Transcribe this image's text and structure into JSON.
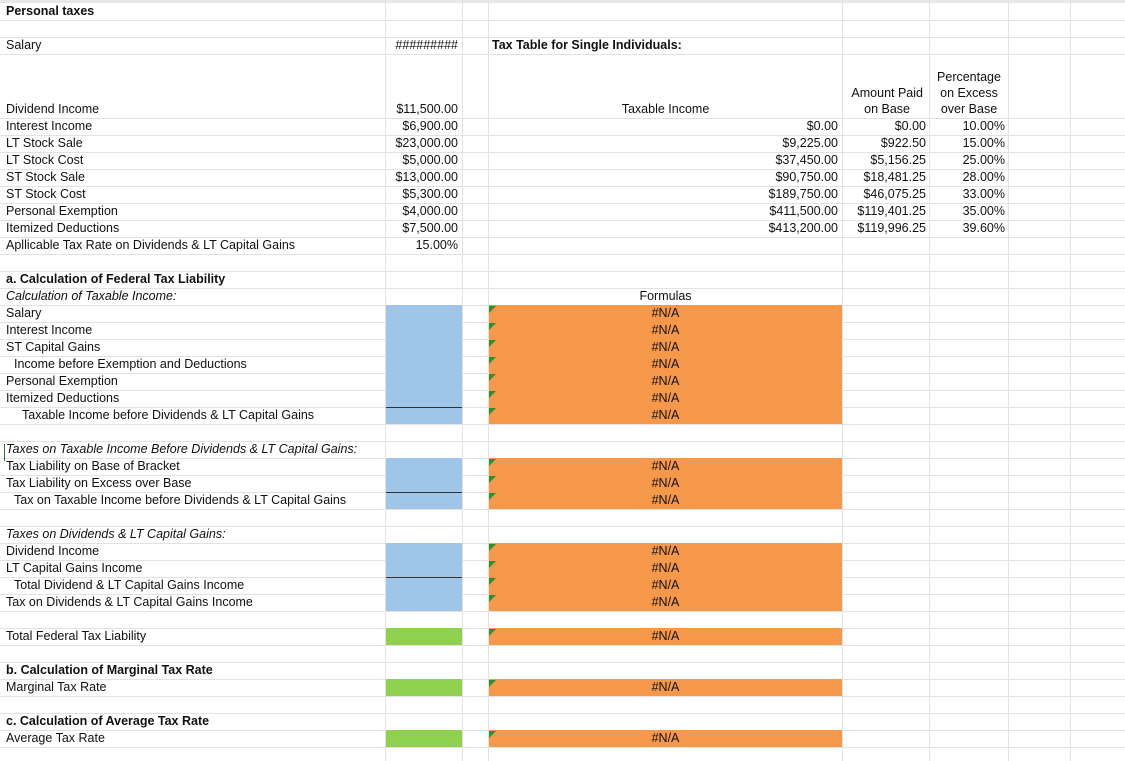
{
  "header": {
    "title": "Personal taxes",
    "salary_label": "Salary",
    "salary_value": "#########",
    "tax_table_title": "Tax Table for Single Individuals:"
  },
  "inputs": [
    {
      "label": "Dividend Income",
      "value": "$11,500.00"
    },
    {
      "label": "Interest Income",
      "value": "$6,900.00"
    },
    {
      "label": "LT Stock Sale",
      "value": "$23,000.00"
    },
    {
      "label": "LT Stock Cost",
      "value": "$5,000.00"
    },
    {
      "label": "ST Stock Sale",
      "value": "$13,000.00"
    },
    {
      "label": "ST Stock Cost",
      "value": "$5,300.00"
    },
    {
      "label": "Personal Exemption",
      "value": "$4,000.00"
    },
    {
      "label": "Itemized Deductions",
      "value": "$7,500.00"
    },
    {
      "label": "Apllicable Tax Rate on Dividends & LT Capital Gains",
      "value": "15.00%"
    }
  ],
  "tax_table": {
    "headers": {
      "taxable_income": "Taxable Income",
      "amount_paid_1": "Amount Paid",
      "amount_paid_2": "on Base",
      "pct_1": "Percentage",
      "pct_2": "on Excess",
      "pct_3": "over Base"
    },
    "rows": [
      {
        "income": "$0.00",
        "base": "$0.00",
        "pct": "10.00%"
      },
      {
        "income": "$9,225.00",
        "base": "$922.50",
        "pct": "15.00%"
      },
      {
        "income": "$37,450.00",
        "base": "$5,156.25",
        "pct": "25.00%"
      },
      {
        "income": "$90,750.00",
        "base": "$18,481.25",
        "pct": "28.00%"
      },
      {
        "income": "$189,750.00",
        "base": "$46,075.25",
        "pct": "33.00%"
      },
      {
        "income": "$411,500.00",
        "base": "$119,401.25",
        "pct": "35.00%"
      },
      {
        "income": "$413,200.00",
        "base": "$119,996.25",
        "pct": "39.60%"
      }
    ]
  },
  "section_a": {
    "title": "a. Calculation of Federal Tax Liability",
    "subtitle": "Calculation of Taxable Income:",
    "formulas_header": "Formulas",
    "rows": [
      {
        "label": "Salary",
        "formula": "#N/A"
      },
      {
        "label": "Interest Income",
        "formula": "#N/A"
      },
      {
        "label": "ST Capital Gains",
        "formula": "#N/A"
      },
      {
        "label": "Income before Exemption and Deductions",
        "formula": "#N/A"
      },
      {
        "label": "Personal Exemption",
        "formula": "#N/A"
      },
      {
        "label": "Itemized Deductions",
        "formula": "#N/A"
      },
      {
        "label": "Taxable Income before Dividends & LT Capital Gains",
        "formula": "#N/A"
      }
    ],
    "taxes_before_title": "Taxes on Taxable Income Before Dividends & LT Capital Gains:",
    "taxes_before_rows": [
      {
        "label": "Tax Liability on Base of Bracket",
        "formula": "#N/A"
      },
      {
        "label": "Tax Liability on Excess over Base",
        "formula": "#N/A"
      },
      {
        "label": "Tax on Taxable Income before Dividends & LT Capital Gains",
        "formula": "#N/A"
      }
    ],
    "taxes_div_title": "Taxes on Dividends & LT Capital Gains:",
    "taxes_div_rows": [
      {
        "label": "Dividend Income",
        "formula": "#N/A"
      },
      {
        "label": "LT Capital Gains Income",
        "formula": "#N/A"
      },
      {
        "label": "Total Dividend & LT Capital Gains Income",
        "formula": "#N/A"
      },
      {
        "label": "Tax on Dividends & LT Capital Gains Income",
        "formula": "#N/A"
      }
    ],
    "total_label": "Total Federal Tax Liability",
    "total_formula": "#N/A"
  },
  "section_b": {
    "title": "b. Calculation of Marginal Tax Rate",
    "label": "Marginal Tax Rate",
    "formula": "#N/A"
  },
  "section_c": {
    "title": "c. Calculation of Average Tax Rate",
    "label": "Average Tax Rate",
    "formula": "#N/A"
  },
  "colors": {
    "input_cell": "#9fc5e8",
    "formula_cell": "#f6984a",
    "result_cell": "#8fd14f"
  }
}
